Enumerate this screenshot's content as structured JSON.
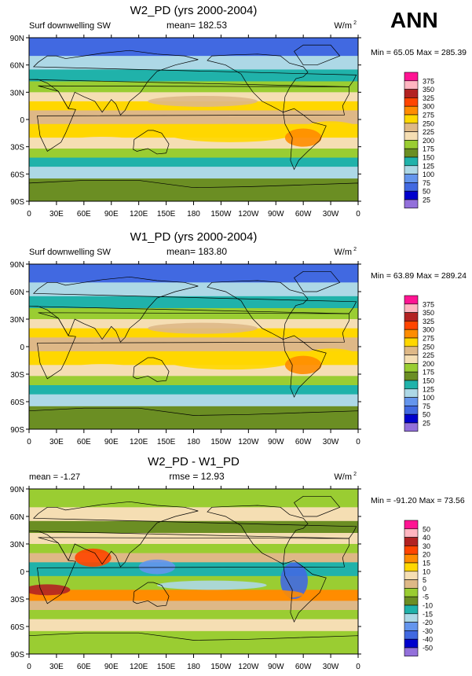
{
  "header": {
    "season_label": "ANN"
  },
  "chart_data": [
    {
      "type": "heatmap",
      "title": "W2_PD (yrs 2000-2004)",
      "left_label": "Surf downwelling SW",
      "center_label": "mean= 182.53",
      "units": "W/m",
      "units_exp": "2",
      "minmax": "Min =  65.05 Max = 285.39",
      "lat_ticks": [
        "90N",
        "60N",
        "30N",
        "0",
        "30S",
        "60S",
        "90S"
      ],
      "lon_ticks": [
        "0",
        "30E",
        "60E",
        "90E",
        "120E",
        "150E",
        "180",
        "150W",
        "120W",
        "90W",
        "60W",
        "30W",
        "0"
      ],
      "legend_labels": [
        "375",
        "350",
        "325",
        "300",
        "275",
        "250",
        "225",
        "200",
        "175",
        "150",
        "125",
        "100",
        "75",
        "50",
        "25"
      ],
      "legend_colors": [
        "#ff1493",
        "#ffb6c1",
        "#b22222",
        "#ff4500",
        "#ff8c00",
        "#ffd700",
        "#deb887",
        "#f5deb3",
        "#9acd32",
        "#6b8e23",
        "#20b2aa",
        "#add8e6",
        "#6495ed",
        "#4169e1",
        "#0000cd",
        "#9370db"
      ],
      "legend_count": 16
    },
    {
      "type": "heatmap",
      "title": "W1_PD (yrs 2000-2004)",
      "left_label": "Surf downwelling SW",
      "center_label": "mean= 183.80",
      "units": "W/m",
      "units_exp": "2",
      "minmax": "Min =  63.89 Max = 289.24",
      "lat_ticks": [
        "90N",
        "60N",
        "30N",
        "0",
        "30S",
        "60S",
        "90S"
      ],
      "lon_ticks": [
        "0",
        "30E",
        "60E",
        "90E",
        "120E",
        "150E",
        "180",
        "150W",
        "120W",
        "90W",
        "60W",
        "30W",
        "0"
      ],
      "legend_labels": [
        "375",
        "350",
        "325",
        "300",
        "275",
        "250",
        "225",
        "200",
        "175",
        "150",
        "125",
        "100",
        "75",
        "50",
        "25"
      ],
      "legend_colors": [
        "#ff1493",
        "#ffb6c1",
        "#b22222",
        "#ff4500",
        "#ff8c00",
        "#ffd700",
        "#deb887",
        "#f5deb3",
        "#9acd32",
        "#6b8e23",
        "#20b2aa",
        "#add8e6",
        "#6495ed",
        "#4169e1",
        "#0000cd",
        "#9370db"
      ],
      "legend_count": 16
    },
    {
      "type": "heatmap",
      "title": "W2_PD - W1_PD",
      "left_label": "mean =  -1.27",
      "center_label": "rmse =  12.93",
      "units": "W/m",
      "units_exp": "2",
      "minmax": "Min = -91.20 Max =  73.56",
      "lat_ticks": [
        "90N",
        "60N",
        "30N",
        "0",
        "30S",
        "60S",
        "90S"
      ],
      "lon_ticks": [
        "0",
        "30E",
        "60E",
        "90E",
        "120E",
        "150E",
        "180",
        "150W",
        "120W",
        "90W",
        "60W",
        "30W",
        "0"
      ],
      "legend_labels": [
        "50",
        "40",
        "30",
        "20",
        "15",
        "10",
        "5",
        "0",
        "-5",
        "-10",
        "-15",
        "-20",
        "-30",
        "-40",
        "-50"
      ],
      "legend_colors": [
        "#ff1493",
        "#ffb6c1",
        "#b22222",
        "#ff4500",
        "#ff8c00",
        "#ffd700",
        "#f5deb3",
        "#deb887",
        "#9acd32",
        "#6b8e23",
        "#20b2aa",
        "#add8e6",
        "#6495ed",
        "#4169e1",
        "#0000cd",
        "#9370db"
      ],
      "legend_count": 16
    }
  ]
}
